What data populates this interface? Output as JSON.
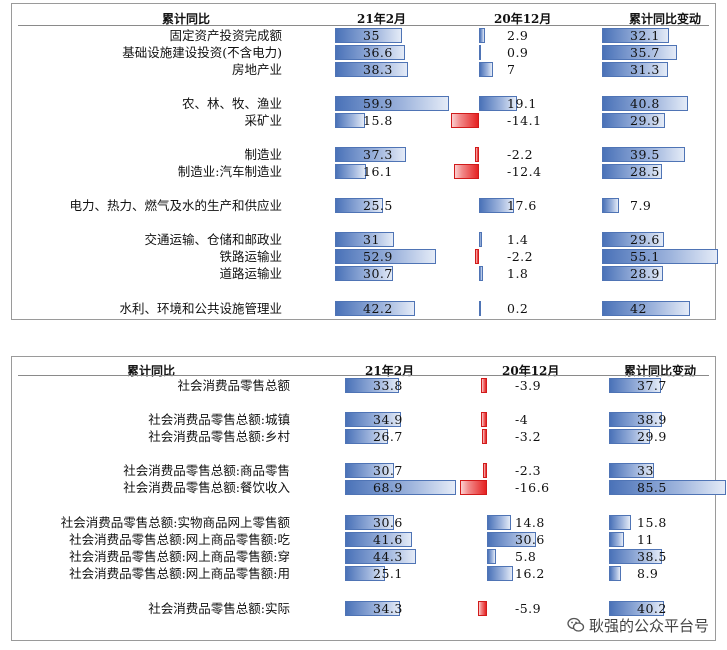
{
  "chart_data": [
    {
      "type": "table",
      "headers": [
        "累计同比",
        "21年2月",
        "20年12月",
        "累计同比变动"
      ],
      "series": [
        {
          "name": "21年2月"
        },
        {
          "name": "20年12月"
        },
        {
          "name": "累计同比变动"
        }
      ],
      "rows": [
        {
          "label": "固定资产投资完成额",
          "values": [
            35,
            2.9,
            32.1
          ]
        },
        {
          "label": "基础设施建设投资(不含电力)",
          "values": [
            36.6,
            0.9,
            35.7
          ]
        },
        {
          "label": "房地产业",
          "values": [
            38.3,
            7,
            31.3
          ]
        },
        {
          "label": "农、林、牧、渔业",
          "values": [
            59.9,
            19.1,
            40.8
          ]
        },
        {
          "label": "采矿业",
          "values": [
            15.8,
            -14.1,
            29.9
          ]
        },
        {
          "label": "制造业",
          "values": [
            37.3,
            -2.2,
            39.5
          ]
        },
        {
          "label": "制造业:汽车制造业",
          "values": [
            16.1,
            -12.4,
            28.5
          ]
        },
        {
          "label": "电力、热力、燃气及水的生产和供应业",
          "values": [
            25.5,
            17.6,
            7.9
          ]
        },
        {
          "label": "交通运输、仓储和邮政业",
          "values": [
            31,
            1.4,
            29.6
          ]
        },
        {
          "label": "铁路运输业",
          "values": [
            52.9,
            -2.2,
            55.1
          ]
        },
        {
          "label": "道路运输业",
          "values": [
            30.7,
            1.8,
            28.9
          ]
        },
        {
          "label": "水利、环境和公共设施管理业",
          "values": [
            42.2,
            0.2,
            42
          ]
        }
      ]
    },
    {
      "type": "table",
      "headers": [
        "累计同比",
        "21年2月",
        "20年12月",
        "累计同比变动"
      ],
      "series": [
        {
          "name": "21年2月"
        },
        {
          "name": "20年12月"
        },
        {
          "name": "累计同比变动"
        }
      ],
      "rows": [
        {
          "label": "社会消费品零售总额",
          "values": [
            33.8,
            -3.9,
            37.7
          ]
        },
        {
          "label": "社会消费品零售总额:城镇",
          "values": [
            34.9,
            -4,
            38.9
          ]
        },
        {
          "label": "社会消费品零售总额:乡村",
          "values": [
            26.7,
            -3.2,
            29.9
          ]
        },
        {
          "label": "社会消费品零售总额:商品零售",
          "values": [
            30.7,
            -2.3,
            33
          ]
        },
        {
          "label": "社会消费品零售总额:餐饮收入",
          "values": [
            68.9,
            -16.6,
            85.5
          ]
        },
        {
          "label": "社会消费品零售总额:实物商品网上零售额",
          "values": [
            30.6,
            14.8,
            15.8
          ]
        },
        {
          "label": "社会消费品零售总额:网上商品零售额:吃",
          "values": [
            41.6,
            30.6,
            11
          ]
        },
        {
          "label": "社会消费品零售总额:网上商品零售额:穿",
          "values": [
            44.3,
            5.8,
            38.5
          ]
        },
        {
          "label": "社会消费品零售总额:网上商品零售额:用",
          "values": [
            25.1,
            16.2,
            8.9
          ]
        },
        {
          "label": "社会消费品零售总额:实际",
          "values": [
            34.3,
            -5.9,
            40.2
          ]
        }
      ]
    }
  ],
  "watermark": {
    "text": "耿强的公众平台号",
    "icon": "wechat-icon"
  },
  "colors": {
    "positive": "#4a72b8",
    "negative": "#e52222"
  }
}
